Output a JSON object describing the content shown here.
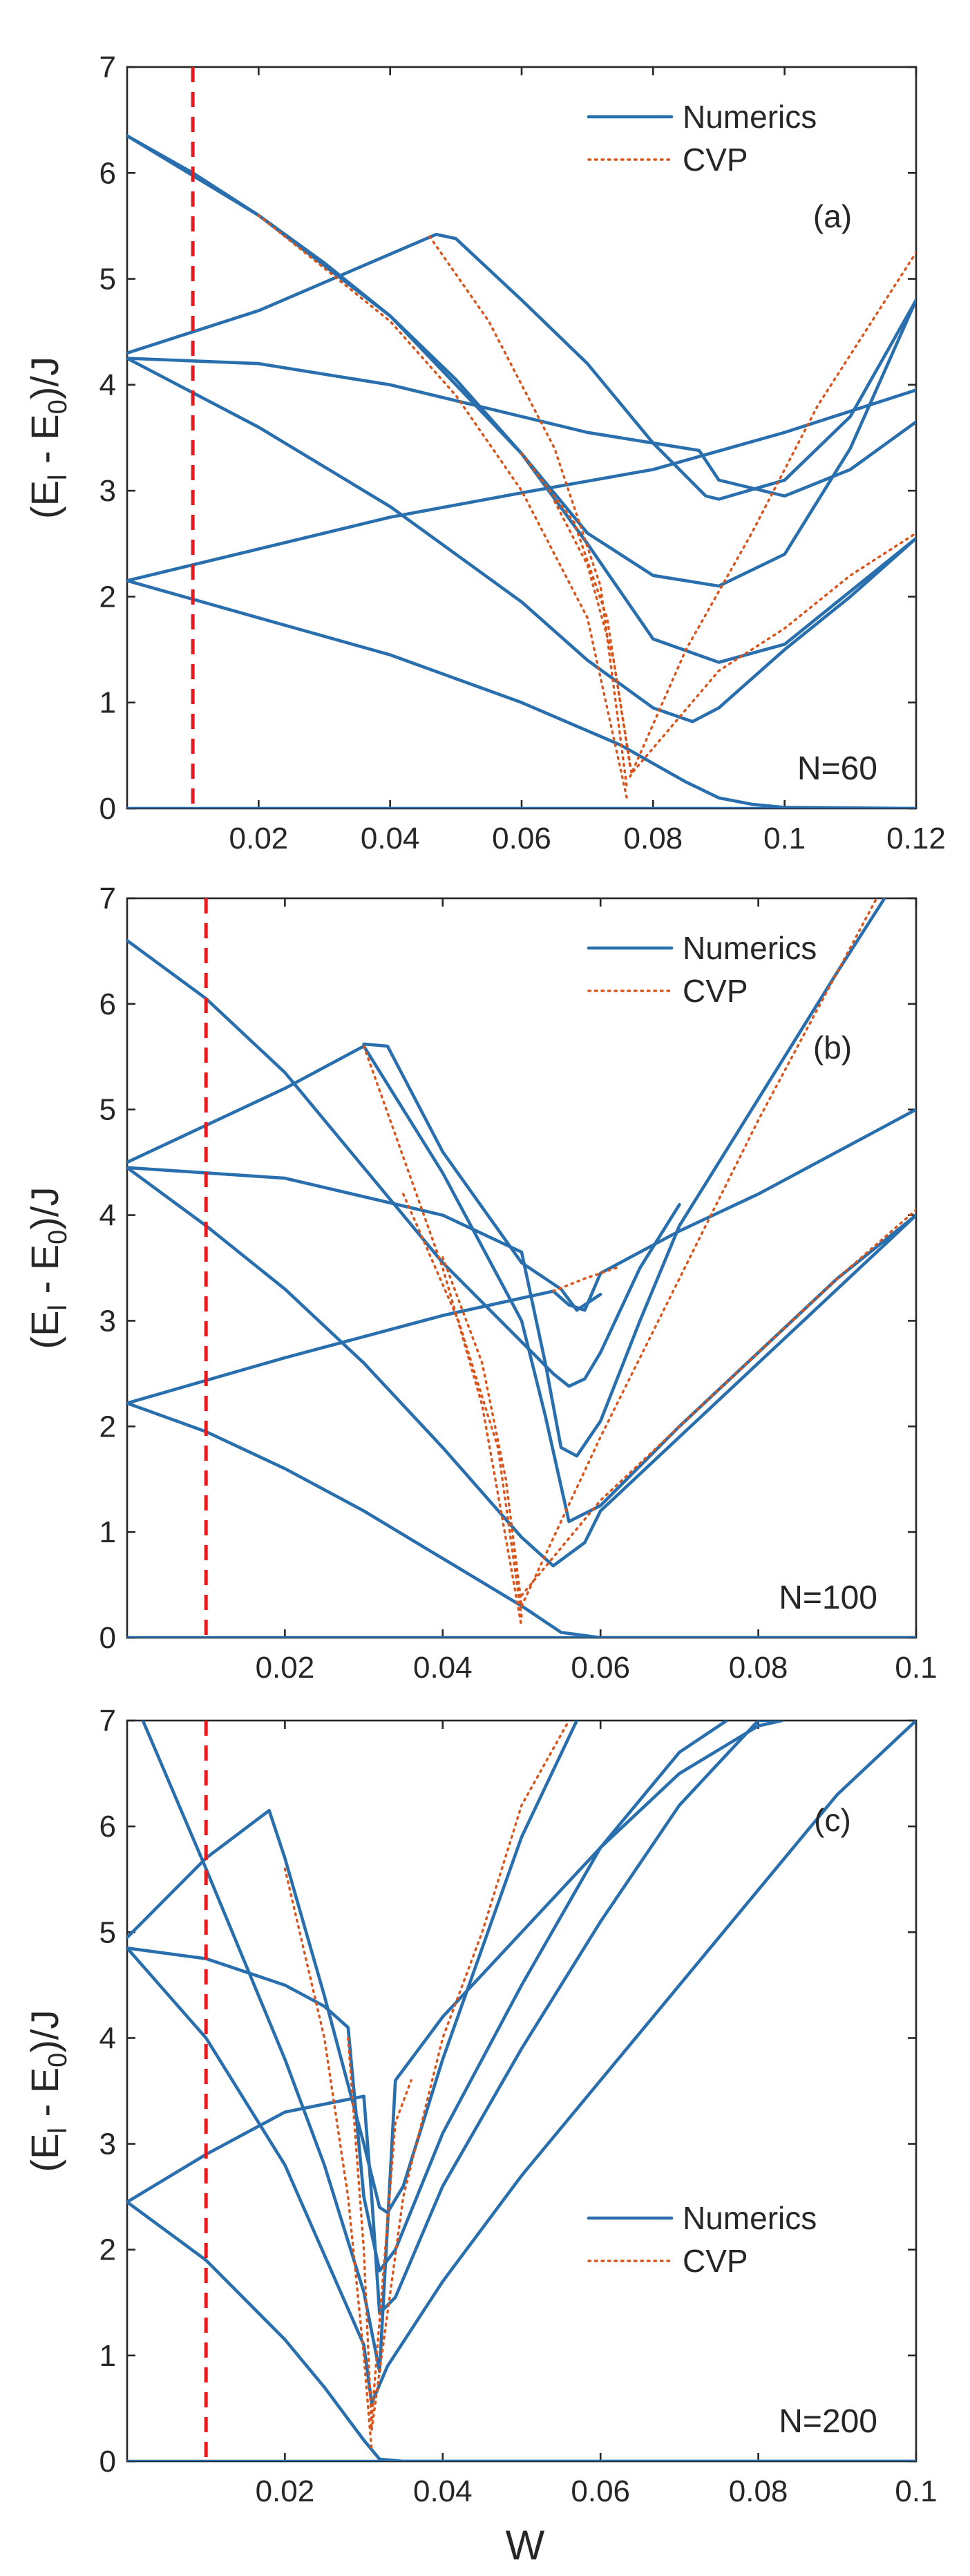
{
  "figure": {
    "xlabel": "W",
    "panel_ylabel_main": "(E",
    "panel_ylabel_sub_l": "l",
    "panel_ylabel_mid": " - E",
    "panel_ylabel_sub_0": "0",
    "panel_ylabel_tail": ")/J"
  },
  "colors": {
    "numerics": "#2a6fad",
    "cvp": "#d9541a",
    "marker": "#e41a1c"
  },
  "chart_data": [
    {
      "type": "line",
      "panel": "(a)",
      "annotation": "N=60",
      "xlabel": "W",
      "ylabel": "(E_l - E_0)/J",
      "xlim": [
        0.0,
        0.12
      ],
      "ylim": [
        0,
        7
      ],
      "xticks": [
        0.02,
        0.04,
        0.06,
        0.08,
        0.1,
        0.12
      ],
      "xtick_labels": [
        "0.02",
        "0.04",
        "0.06",
        "0.08",
        "0.1",
        "0.12"
      ],
      "yticks": [
        0,
        1,
        2,
        3,
        4,
        5,
        6,
        7
      ],
      "ytick_labels": [
        "0",
        "1",
        "2",
        "3",
        "4",
        "5",
        "6",
        "7"
      ],
      "legend": {
        "placement": "top-right",
        "entries": [
          "Numerics",
          "CVP"
        ]
      },
      "vline_x": 0.01,
      "series": [
        {
          "name": "Numerics",
          "style": "solid",
          "x": [
            0.0,
            0.12
          ],
          "y": [
            0.0,
            0.0
          ]
        },
        {
          "name": "Numerics",
          "style": "solid",
          "x": [
            0.0,
            0.02,
            0.04,
            0.06,
            0.075,
            0.085,
            0.09,
            0.095,
            0.1,
            0.12
          ],
          "y": [
            2.15,
            1.8,
            1.45,
            1.0,
            0.6,
            0.25,
            0.1,
            0.04,
            0.01,
            0.0
          ]
        },
        {
          "name": "Numerics",
          "style": "solid",
          "x": [
            0.0,
            0.02,
            0.04,
            0.06,
            0.08,
            0.1,
            0.12
          ],
          "y": [
            2.15,
            2.45,
            2.75,
            2.98,
            3.2,
            3.55,
            3.95
          ]
        },
        {
          "name": "Numerics",
          "style": "solid",
          "x": [
            0.0,
            0.02,
            0.04,
            0.06,
            0.07,
            0.08,
            0.086,
            0.09,
            0.1,
            0.11,
            0.12
          ],
          "y": [
            4.25,
            3.6,
            2.85,
            1.95,
            1.4,
            0.95,
            0.82,
            0.95,
            1.5,
            2.0,
            2.55
          ]
        },
        {
          "name": "Numerics",
          "style": "solid",
          "x": [
            0.0,
            0.02,
            0.04,
            0.06,
            0.07,
            0.08,
            0.087,
            0.09,
            0.1,
            0.11,
            0.12
          ],
          "y": [
            4.25,
            4.2,
            4.0,
            3.7,
            3.55,
            3.45,
            3.38,
            3.1,
            2.95,
            3.2,
            3.65
          ]
        },
        {
          "name": "Numerics",
          "style": "solid",
          "x": [
            0.0,
            0.02,
            0.047,
            0.05,
            0.06,
            0.07,
            0.08,
            0.088,
            0.09,
            0.1,
            0.11,
            0.12
          ],
          "y": [
            4.3,
            4.7,
            5.42,
            5.38,
            4.8,
            4.2,
            3.45,
            2.95,
            2.92,
            3.1,
            3.7,
            4.8
          ]
        },
        {
          "name": "Numerics",
          "style": "solid",
          "x": [
            0.0,
            0.01,
            0.02,
            0.03,
            0.04,
            0.05,
            0.06,
            0.07,
            0.08,
            0.09,
            0.1,
            0.11,
            0.12
          ],
          "y": [
            6.35,
            6.0,
            5.6,
            5.15,
            4.65,
            4.05,
            3.35,
            2.6,
            2.2,
            2.1,
            2.4,
            3.4,
            4.8
          ]
        },
        {
          "name": "Numerics",
          "style": "solid",
          "x": [
            0.0,
            0.02,
            0.04,
            0.06,
            0.07,
            0.08,
            0.09,
            0.1,
            0.11,
            0.12
          ],
          "y": [
            6.35,
            5.6,
            4.65,
            3.35,
            2.5,
            1.6,
            1.38,
            1.55,
            2.05,
            2.55
          ]
        },
        {
          "name": "CVP",
          "style": "dotted",
          "x": [
            0.02,
            0.04,
            0.05,
            0.06,
            0.07,
            0.076
          ],
          "y": [
            5.6,
            4.6,
            3.9,
            3.0,
            1.8,
            0.1
          ]
        },
        {
          "name": "CVP",
          "style": "dotted",
          "x": [
            0.046,
            0.055,
            0.065,
            0.072,
            0.076
          ],
          "y": [
            5.4,
            4.6,
            3.4,
            2.1,
            0.2
          ]
        },
        {
          "name": "CVP",
          "style": "dotted",
          "x": [
            0.06,
            0.068,
            0.073,
            0.0765
          ],
          "y": [
            3.35,
            2.7,
            1.8,
            0.4
          ]
        },
        {
          "name": "CVP",
          "style": "dotted",
          "x": [
            0.065,
            0.07,
            0.074,
            0.0768
          ],
          "y": [
            2.9,
            2.3,
            1.4,
            0.3
          ]
        },
        {
          "name": "CVP",
          "style": "dotted",
          "x": [
            0.0765,
            0.085,
            0.095,
            0.105,
            0.12
          ],
          "y": [
            0.3,
            1.5,
            2.6,
            3.8,
            5.25
          ]
        },
        {
          "name": "CVP",
          "style": "dotted",
          "x": [
            0.077,
            0.09,
            0.1,
            0.11,
            0.12
          ],
          "y": [
            0.35,
            1.3,
            1.7,
            2.2,
            2.6
          ]
        }
      ]
    },
    {
      "type": "line",
      "panel": "(b)",
      "annotation": "N=100",
      "xlabel": "W",
      "ylabel": "(E_l - E_0)/J",
      "xlim": [
        0.0,
        0.1
      ],
      "ylim": [
        0,
        7
      ],
      "xticks": [
        0.02,
        0.04,
        0.06,
        0.08,
        0.1
      ],
      "xtick_labels": [
        "0.02",
        "0.04",
        "0.06",
        "0.08",
        "0.1"
      ],
      "yticks": [
        0,
        1,
        2,
        3,
        4,
        5,
        6,
        7
      ],
      "ytick_labels": [
        "0",
        "1",
        "2",
        "3",
        "4",
        "5",
        "6",
        "7"
      ],
      "legend": {
        "placement": "top-right",
        "entries": [
          "Numerics",
          "CVP"
        ]
      },
      "vline_x": 0.01,
      "series": [
        {
          "name": "Numerics",
          "style": "solid",
          "x": [
            0.0,
            0.1
          ],
          "y": [
            0.0,
            0.0
          ]
        },
        {
          "name": "Numerics",
          "style": "solid",
          "x": [
            0.0,
            0.01,
            0.02,
            0.03,
            0.04,
            0.05,
            0.055,
            0.06,
            0.1
          ],
          "y": [
            2.22,
            1.95,
            1.6,
            1.2,
            0.75,
            0.3,
            0.05,
            0.0,
            0.0
          ]
        },
        {
          "name": "Numerics",
          "style": "solid",
          "x": [
            0.0,
            0.02,
            0.04,
            0.054,
            0.056,
            0.058,
            0.06,
            0.07,
            0.08,
            0.09,
            0.1
          ],
          "y": [
            2.22,
            2.65,
            3.05,
            3.28,
            3.15,
            3.1,
            3.45,
            3.85,
            4.2,
            4.6,
            5.0
          ]
        },
        {
          "name": "Numerics",
          "style": "solid",
          "x": [
            0.0,
            0.01,
            0.02,
            0.03,
            0.04,
            0.05,
            0.054,
            0.058,
            0.06,
            0.07,
            0.08,
            0.09,
            0.1
          ],
          "y": [
            4.45,
            3.9,
            3.3,
            2.6,
            1.8,
            0.95,
            0.68,
            0.9,
            1.2,
            1.9,
            2.6,
            3.3,
            4.0
          ]
        },
        {
          "name": "Numerics",
          "style": "solid",
          "x": [
            0.0,
            0.01,
            0.02,
            0.03,
            0.04,
            0.05,
            0.053,
            0.056,
            0.06,
            0.07,
            0.08,
            0.09,
            0.1
          ],
          "y": [
            4.5,
            4.85,
            5.2,
            5.6,
            4.4,
            3.0,
            2.1,
            1.1,
            1.25,
            2.0,
            2.7,
            3.4,
            4.0
          ]
        },
        {
          "name": "Numerics",
          "style": "solid",
          "x": [
            0.0,
            0.02,
            0.04,
            0.05,
            0.053,
            0.055,
            0.057,
            0.06,
            0.065,
            0.07,
            0.08,
            0.09,
            0.096
          ],
          "y": [
            4.45,
            4.35,
            4.0,
            3.65,
            2.6,
            1.8,
            1.72,
            2.05,
            3.0,
            3.9,
            5.1,
            6.3,
            7.0
          ]
        },
        {
          "name": "Numerics",
          "style": "solid",
          "x": [
            0.0,
            0.01,
            0.02,
            0.03,
            0.04,
            0.05,
            0.054,
            0.056,
            0.058,
            0.06,
            0.065,
            0.07
          ],
          "y": [
            6.6,
            6.05,
            5.35,
            4.45,
            3.55,
            2.8,
            2.5,
            2.38,
            2.45,
            2.7,
            3.5,
            4.1
          ]
        },
        {
          "name": "Numerics",
          "style": "solid",
          "x": [
            0.03,
            0.033,
            0.04,
            0.05,
            0.055,
            0.057,
            0.06
          ],
          "y": [
            5.62,
            5.6,
            4.6,
            3.55,
            3.3,
            3.1,
            3.25
          ]
        },
        {
          "name": "CVP",
          "style": "dotted",
          "x": [
            0.03,
            0.04,
            0.045,
            0.05
          ],
          "y": [
            5.6,
            3.5,
            2.2,
            0.1
          ]
        },
        {
          "name": "CVP",
          "style": "dotted",
          "x": [
            0.035,
            0.042,
            0.047,
            0.05
          ],
          "y": [
            4.2,
            3.0,
            1.8,
            0.2
          ]
        },
        {
          "name": "CVP",
          "style": "dotted",
          "x": [
            0.04,
            0.045,
            0.048,
            0.05
          ],
          "y": [
            3.6,
            2.6,
            1.5,
            0.3
          ]
        },
        {
          "name": "CVP",
          "style": "dotted",
          "x": [
            0.05,
            0.06,
            0.07,
            0.08,
            0.09,
            0.095
          ],
          "y": [
            0.3,
            1.9,
            3.4,
            4.9,
            6.3,
            7.0
          ]
        },
        {
          "name": "CVP",
          "style": "dotted",
          "x": [
            0.05,
            0.06,
            0.07,
            0.08,
            0.09,
            0.1
          ],
          "y": [
            0.4,
            1.3,
            2.0,
            2.7,
            3.4,
            4.05
          ]
        },
        {
          "name": "CVP",
          "style": "dotted",
          "x": [
            0.054,
            0.058,
            0.062
          ],
          "y": [
            3.28,
            3.4,
            3.5
          ]
        }
      ]
    },
    {
      "type": "line",
      "panel": "(c)",
      "annotation": "N=200",
      "xlabel": "W",
      "ylabel": "(E_l - E_0)/J",
      "xlim": [
        0.0,
        0.1
      ],
      "ylim": [
        0,
        7
      ],
      "xticks": [
        0.02,
        0.04,
        0.06,
        0.08,
        0.1
      ],
      "xtick_labels": [
        "0.02",
        "0.04",
        "0.06",
        "0.08",
        "0.1"
      ],
      "yticks": [
        0,
        1,
        2,
        3,
        4,
        5,
        6,
        7
      ],
      "ytick_labels": [
        "0",
        "1",
        "2",
        "3",
        "4",
        "5",
        "6",
        "7"
      ],
      "legend": {
        "placement": "lower-right",
        "entries": [
          "Numerics",
          "CVP"
        ]
      },
      "vline_x": 0.01,
      "series": [
        {
          "name": "Numerics",
          "style": "solid",
          "x": [
            0.0,
            0.1
          ],
          "y": [
            0.0,
            0.0
          ]
        },
        {
          "name": "Numerics",
          "style": "solid",
          "x": [
            0.0,
            0.01,
            0.02,
            0.025,
            0.03,
            0.032,
            0.035,
            0.1
          ],
          "y": [
            2.45,
            1.9,
            1.15,
            0.7,
            0.2,
            0.02,
            0.0,
            0.0
          ]
        },
        {
          "name": "Numerics",
          "style": "solid",
          "x": [
            0.0,
            0.01,
            0.02,
            0.03,
            0.031,
            0.032,
            0.034,
            0.04,
            0.05,
            0.06,
            0.07,
            0.08,
            0.083
          ],
          "y": [
            2.45,
            2.9,
            3.3,
            3.45,
            2.5,
            1.4,
            1.55,
            2.6,
            3.9,
            5.1,
            6.2,
            7.0,
            7.0
          ]
        },
        {
          "name": "Numerics",
          "style": "solid",
          "x": [
            0.0,
            0.01,
            0.02,
            0.03,
            0.031,
            0.033,
            0.04,
            0.05,
            0.06,
            0.07,
            0.08,
            0.09,
            0.1
          ],
          "y": [
            4.85,
            4.0,
            2.8,
            1.1,
            0.55,
            0.9,
            1.7,
            2.7,
            3.6,
            4.5,
            5.4,
            6.3,
            7.0
          ]
        },
        {
          "name": "Numerics",
          "style": "solid",
          "x": [
            0.0,
            0.01,
            0.02,
            0.025,
            0.028,
            0.03,
            0.032,
            0.034,
            0.04,
            0.05,
            0.06,
            0.07,
            0.076
          ],
          "y": [
            4.85,
            4.75,
            4.5,
            4.3,
            4.1,
            2.5,
            1.8,
            2.0,
            3.1,
            4.5,
            5.8,
            6.7,
            7.0
          ]
        },
        {
          "name": "Numerics",
          "style": "solid",
          "x": [
            0.0,
            0.01,
            0.018,
            0.02,
            0.025,
            0.03,
            0.032,
            0.033,
            0.035,
            0.04,
            0.05,
            0.057
          ],
          "y": [
            4.95,
            5.7,
            6.15,
            5.7,
            4.4,
            3.0,
            2.4,
            2.35,
            2.6,
            3.8,
            5.9,
            7.0
          ]
        },
        {
          "name": "Numerics",
          "style": "solid",
          "x": [
            0.002,
            0.01,
            0.02,
            0.025,
            0.03,
            0.032,
            0.034,
            0.04,
            0.05,
            0.06,
            0.07,
            0.08,
            0.083
          ],
          "y": [
            7.0,
            5.6,
            3.8,
            2.8,
            1.6,
            0.85,
            3.6,
            4.2,
            5.0,
            5.8,
            6.5,
            6.95,
            7.0
          ]
        },
        {
          "name": "CVP",
          "style": "dotted",
          "x": [
            0.02,
            0.025,
            0.028,
            0.03,
            0.031
          ],
          "y": [
            5.6,
            4.0,
            2.5,
            1.0,
            0.1
          ]
        },
        {
          "name": "CVP",
          "style": "dotted",
          "x": [
            0.028,
            0.03,
            0.031
          ],
          "y": [
            4.0,
            2.0,
            0.3
          ]
        },
        {
          "name": "CVP",
          "style": "dotted",
          "x": [
            0.031,
            0.035,
            0.04,
            0.045,
            0.05,
            0.056
          ],
          "y": [
            0.3,
            2.5,
            4.0,
            5.0,
            6.2,
            7.0
          ]
        },
        {
          "name": "CVP",
          "style": "dotted",
          "x": [
            0.031,
            0.034,
            0.036
          ],
          "y": [
            0.4,
            3.2,
            3.6
          ]
        }
      ]
    }
  ]
}
